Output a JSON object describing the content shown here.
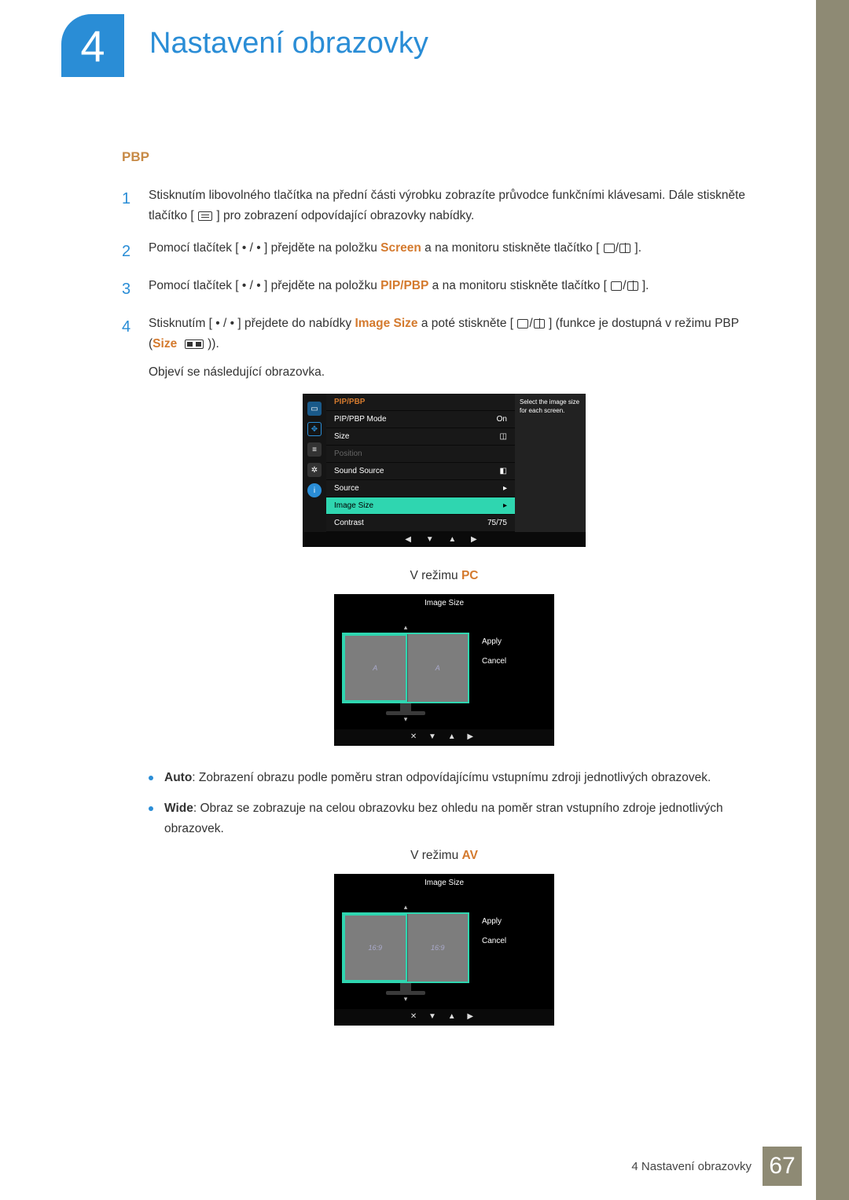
{
  "chapter": {
    "number": "4",
    "title": "Nastavení obrazovky"
  },
  "section": {
    "title": "PBP"
  },
  "steps": {
    "s1": {
      "num": "1",
      "text_a": "Stisknutím libovolného tlačítka na přední části výrobku zobrazíte průvodce funkčními klávesami. Dále stiskněte tlačítko [",
      "text_b": "] pro zobrazení odpovídající obrazovky nabídky."
    },
    "s2": {
      "num": "2",
      "text_a": "Pomocí tlačítek [ • / • ] přejděte na položku ",
      "hl": "Screen",
      "text_b": " a na monitoru stiskněte tlačítko [",
      "text_c": "]."
    },
    "s3": {
      "num": "3",
      "text_a": "Pomocí tlačítek [ • / • ] přejděte na položku ",
      "hl": "PIP/PBP",
      "text_b": " a na monitoru stiskněte tlačítko [",
      "text_c": "]."
    },
    "s4": {
      "num": "4",
      "text_a": "Stisknutím [ • / • ] přejdete do nabídky ",
      "hl1": "Image Size",
      "text_b": " a poté stiskněte [",
      "text_c": "] (funkce je dostupná v režimu PBP (",
      "hl2": "Size",
      "text_d": "))."
    },
    "note": "Objeví se následující obrazovka."
  },
  "osd": {
    "header": "PIP/PBP",
    "rows": [
      {
        "label": "PIP/PBP Mode",
        "value": "On",
        "dim": false
      },
      {
        "label": "Size",
        "value": "◫",
        "dim": false
      },
      {
        "label": "Position",
        "value": "",
        "dim": true
      },
      {
        "label": "Sound Source",
        "value": "◧",
        "dim": false
      },
      {
        "label": "Source",
        "value": "▸",
        "dim": false
      },
      {
        "label": "Image Size",
        "value": "▸",
        "dim": false,
        "sel": true
      },
      {
        "label": "Contrast",
        "value": "75/75",
        "dim": false
      }
    ],
    "help": "Select the image size for each screen.",
    "nav": "◀ ▼ ▲ ▶",
    "side_colors": [
      "#2a8dd6",
      "#2a8dd6",
      "#444",
      "#444",
      "#2a8dd6"
    ]
  },
  "mode_pc": {
    "prefix": "V režimu ",
    "hl": "PC"
  },
  "imgsize_pc": {
    "title": "Image Size",
    "left": "A",
    "right": "A",
    "apply": "Apply",
    "cancel": "Cancel",
    "nav": "✕  ▼  ▲  ▶"
  },
  "bullets": {
    "auto": {
      "label": "Auto",
      "text": ": Zobrazení obrazu podle poměru stran odpovídajícímu vstupnímu zdroji jednotlivých obrazovek."
    },
    "wide": {
      "label": "Wide",
      "text": ": Obraz se zobrazuje na celou obrazovku bez ohledu na poměr stran vstupního zdroje jednotlivých obrazovek."
    }
  },
  "mode_av": {
    "prefix": "V režimu ",
    "hl": "AV"
  },
  "imgsize_av": {
    "title": "Image Size",
    "left": "16:9",
    "right": "16:9",
    "apply": "Apply",
    "cancel": "Cancel",
    "nav": "✕  ▼  ▲  ▶"
  },
  "footer": {
    "text": "4 Nastavení obrazovky",
    "page": "67"
  }
}
